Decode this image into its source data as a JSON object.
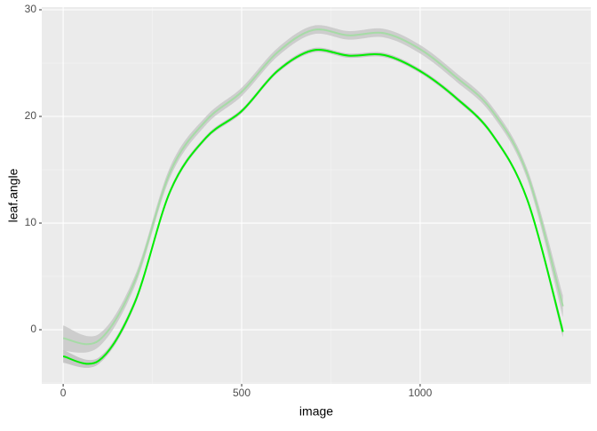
{
  "chart_data": {
    "type": "line",
    "x_label": "image",
    "y_label": "leaf.angle",
    "x": [
      0,
      100,
      200,
      300,
      400,
      500,
      600,
      700,
      800,
      900,
      1000,
      1100,
      1200,
      1300,
      1400
    ],
    "series": [
      {
        "color": "#00ee00",
        "band_color": "#bfbfbf",
        "values": [
          -2.5,
          -2.9,
          2.5,
          13.0,
          18.0,
          20.5,
          24.25,
          26.2,
          25.7,
          25.75,
          24.25,
          21.75,
          18.4,
          12.2,
          -0.2
        ],
        "errors": [
          0.6,
          0.3,
          0.3,
          0.25,
          0.2,
          0.2,
          0.2,
          0.2,
          0.2,
          0.2,
          0.2,
          0.2,
          0.2,
          0.25,
          0.5
        ]
      },
      {
        "color": "#a6dba6",
        "band_color": "#c8c8c8",
        "values": [
          -0.8,
          -1.0,
          4.5,
          14.8,
          19.6,
          22.3,
          26.0,
          28.1,
          27.6,
          27.8,
          26.3,
          23.7,
          20.6,
          14.6,
          2.2
        ],
        "errors": [
          1.2,
          0.6,
          0.5,
          0.5,
          0.4,
          0.4,
          0.4,
          0.4,
          0.4,
          0.4,
          0.4,
          0.4,
          0.4,
          0.5,
          1.0
        ]
      }
    ],
    "xlim": [
      -60,
      1478
    ],
    "ylim": [
      -5.08,
      30.25
    ],
    "xticks": [
      0,
      500,
      1000
    ],
    "yticks": [
      0,
      10,
      20,
      30
    ],
    "grid": true,
    "minor_grid": true
  }
}
